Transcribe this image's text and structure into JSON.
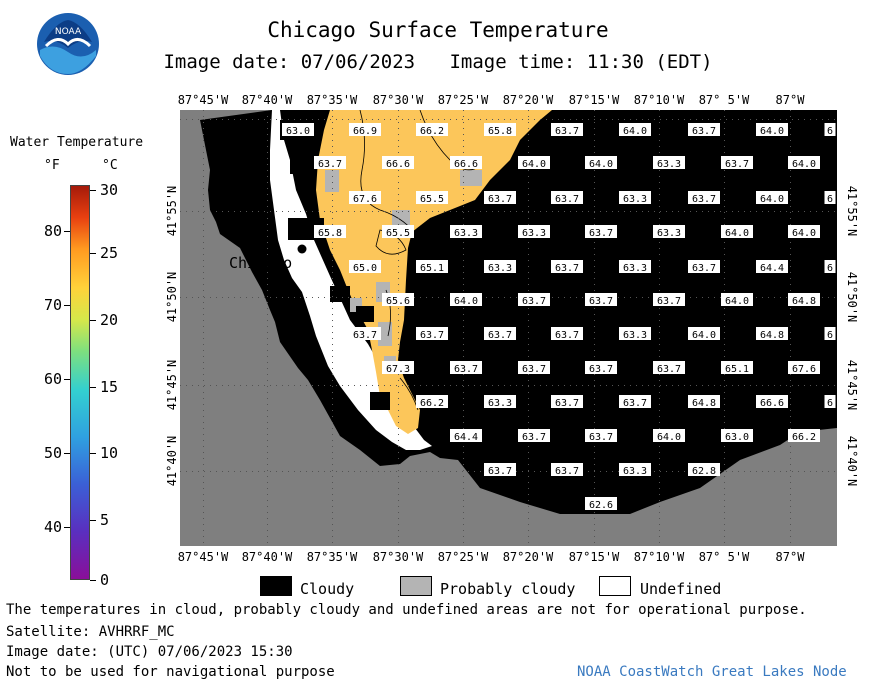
{
  "header": {
    "title": "Chicago Surface Temperature",
    "image_date_label": "Image date: 07/06/2023",
    "image_time_label": "Image time: 11:30 (EDT)",
    "logo_text": "NOAA"
  },
  "colors": {
    "land": "#7f7f7f",
    "cloudy": "#000000",
    "probably_cloudy": "#b4b4b4",
    "undefined": "#ffffff",
    "warm_water": "#fcc65a",
    "lake_shore_water": "#f5a63a"
  },
  "axes": {
    "lon_labels": [
      "87°45'W",
      "87°40'W",
      "87°35'W",
      "87°30'W",
      "87°25'W",
      "87°20'W",
      "87°15'W",
      "87°10'W",
      "87° 5'W",
      "87°W"
    ],
    "lat_labels": [
      "41°55'N",
      "41°50'N",
      "41°45'N",
      "41°40'N"
    ]
  },
  "place_labels": {
    "chicago": "Chicago"
  },
  "scale": {
    "title": "Water Temperature",
    "unit_f": "°F",
    "unit_c": "°C",
    "f_ticks": [
      "80",
      "70",
      "60",
      "50",
      "40"
    ],
    "c_ticks": [
      "30",
      "25",
      "20",
      "15",
      "10",
      "5",
      "0"
    ]
  },
  "legend": {
    "cloudy": "Cloudy",
    "probably_cloudy": "Probably cloudy",
    "undefined": "Undefined"
  },
  "footer": {
    "note": "The temperatures in cloud, probably cloudy and undefined areas are not for operational purpose.",
    "satellite": "Satellite: AVHRRF_MC",
    "utc_date": "Image date: (UTC) 07/06/2023  15:30",
    "nav_warning": "Not to be used for navigational purpose",
    "credit": "NOAA CoastWatch Great Lakes Node"
  },
  "temperature_labels": [
    {
      "row": 0,
      "values": [
        "63.0",
        "66.9",
        "66.2",
        "65.8",
        "63.7",
        "64.0",
        "63.7",
        "64.0",
        "6"
      ]
    },
    {
      "row": 1,
      "values": [
        "63.7",
        "66.6",
        "66.6",
        "64.0",
        "64.0",
        "63.3",
        "63.7",
        "64.0"
      ]
    },
    {
      "row": 2,
      "values": [
        "67.6",
        "65.5",
        "63.7",
        "63.7",
        "63.3",
        "63.7",
        "64.0",
        "6"
      ]
    },
    {
      "row": 3,
      "values": [
        "65.8",
        "65.5",
        "63.3",
        "63.3",
        "63.7",
        "63.3",
        "64.0",
        "64.0"
      ]
    },
    {
      "row": 4,
      "values": [
        "65.0",
        "65.1",
        "63.3",
        "63.7",
        "63.3",
        "63.7",
        "64.4",
        "6"
      ]
    },
    {
      "row": 5,
      "values": [
        "65.6",
        "64.0",
        "63.7",
        "63.7",
        "63.7",
        "64.0",
        "64.8"
      ]
    },
    {
      "row": 6,
      "values": [
        "63.7",
        "63.7",
        "63.7",
        "63.7",
        "63.3",
        "64.0",
        "64.8",
        "6"
      ]
    },
    {
      "row": 7,
      "values": [
        "67.3",
        "63.7",
        "63.7",
        "63.7",
        "63.7",
        "65.1",
        "67.6"
      ]
    },
    {
      "row": 8,
      "values": [
        "66.2",
        "63.3",
        "63.7",
        "63.7",
        "64.8",
        "66.6",
        "6"
      ]
    },
    {
      "row": 9,
      "values": [
        "64.4",
        "63.7",
        "63.7",
        "64.0",
        "63.0",
        "66.2"
      ]
    },
    {
      "row": 10,
      "values": [
        "63.7",
        "63.7",
        "63.3",
        "62.8"
      ]
    },
    {
      "row": 11,
      "values": [
        "62.6"
      ]
    }
  ]
}
